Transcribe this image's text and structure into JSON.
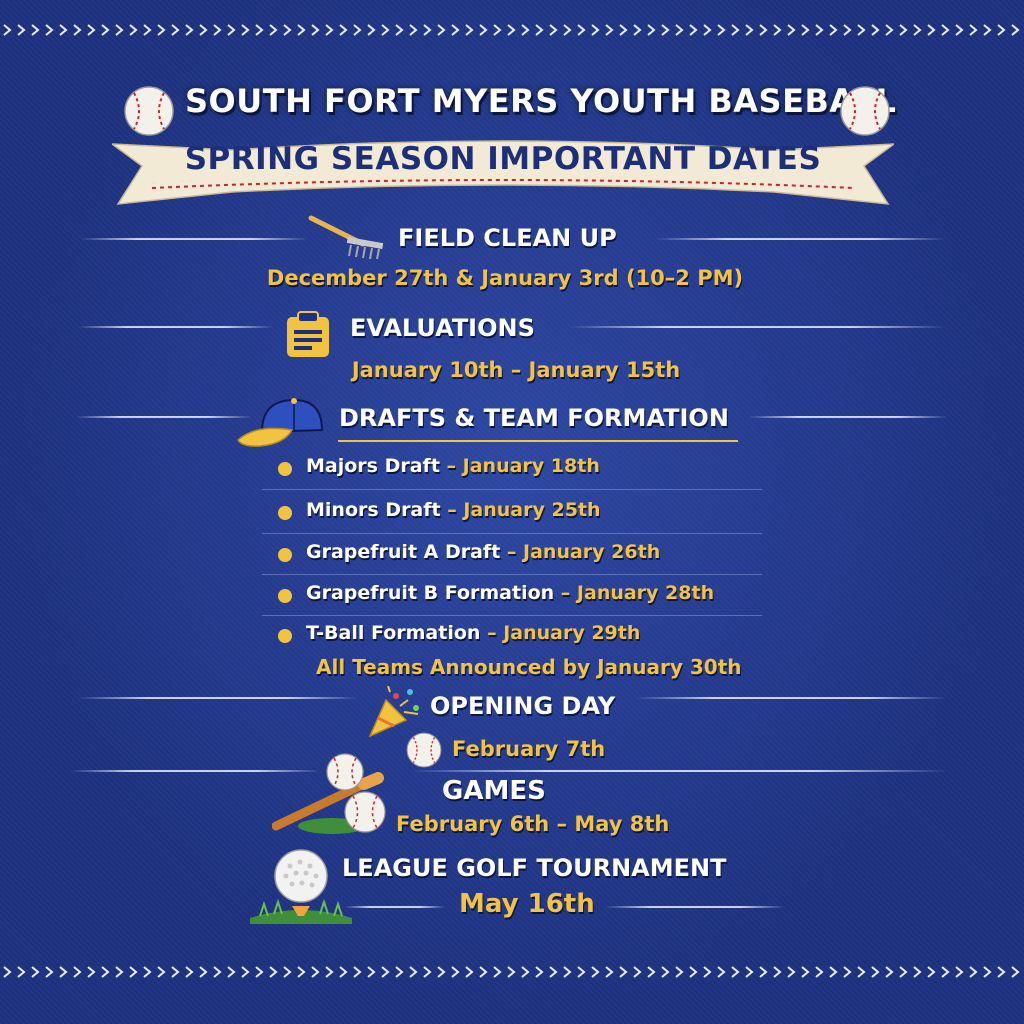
{
  "header": {
    "title": "SOUTH FORT MYERS YOUTH BASEBALL",
    "subtitle": "SPRING SEASON IMPORTANT DATES"
  },
  "colors": {
    "background": "#1d3180",
    "accent": "#f2c241",
    "heading": "#ffffff",
    "banner": "#f3ead6",
    "stitch": "#c8242f"
  },
  "sections": {
    "field_cleanup": {
      "icon": "rake-icon",
      "title": "FIELD CLEAN UP",
      "date": "December 27th & January 3rd (10–2 PM)"
    },
    "evaluations": {
      "icon": "clipboard-icon",
      "title": "EVALUATIONS",
      "date": "January 10th – January 15th"
    },
    "drafts": {
      "icon": "baseball-cap-icon",
      "title": "DRAFTS & TEAM FORMATION",
      "items": [
        {
          "name": "Majors Draft",
          "sep": "–",
          "date": "January 18th"
        },
        {
          "name": "Minors Draft",
          "sep": "–",
          "date": "January 25th"
        },
        {
          "name": "Grapefruit A Draft",
          "sep": "–",
          "date": "January 26th"
        },
        {
          "name": "Grapefruit B Formation",
          "sep": "–",
          "date": "January 28th"
        },
        {
          "name": "T-Ball Formation",
          "sep": "–",
          "date": "January 29th"
        }
      ],
      "note": "All Teams Announced by January 30th"
    },
    "opening_day": {
      "icon": "party-popper-icon",
      "title": "OPENING DAY",
      "date": "February 7th"
    },
    "games": {
      "icon": "bat-and-ball-icon",
      "title": "GAMES",
      "date": "February 6th – May 8th"
    },
    "golf": {
      "icon": "golf-ball-icon",
      "title": "LEAGUE GOLF TOURNAMENT",
      "date": "May 16th"
    }
  }
}
